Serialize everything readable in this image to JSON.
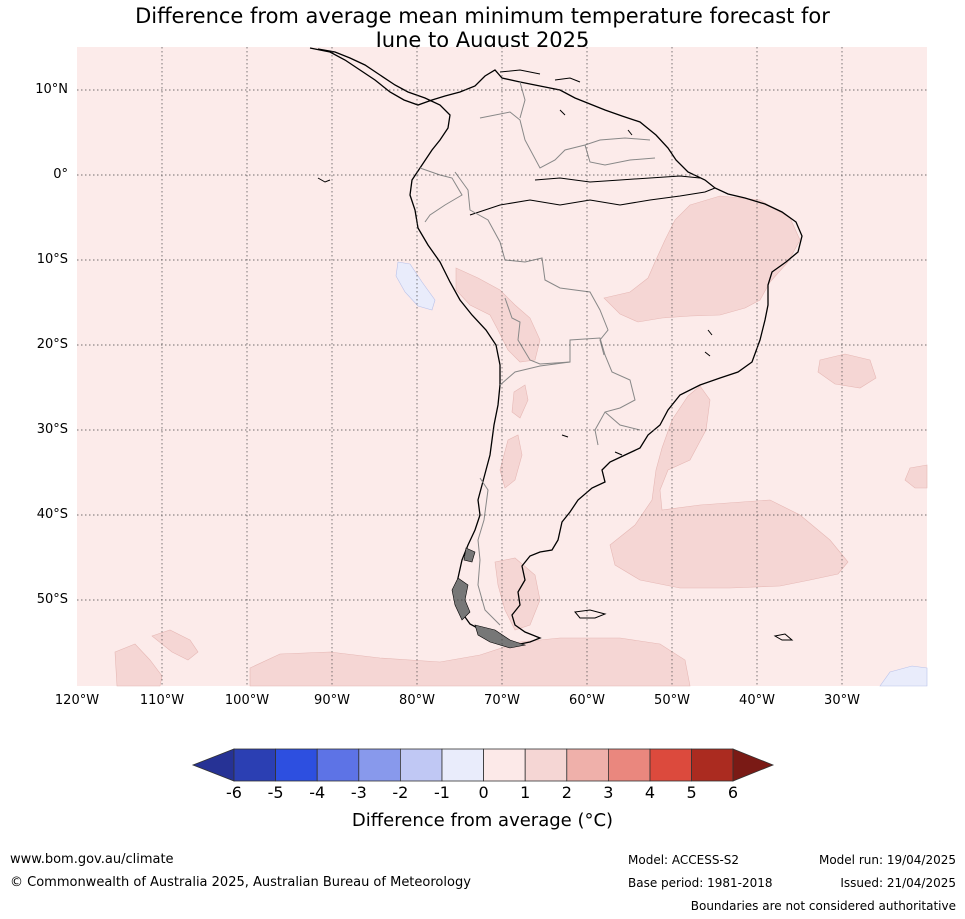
{
  "title_line1": "Difference from average mean minimum temperature forecast for",
  "title_line2": "June to August 2025",
  "lat_labels": [
    "10°N",
    "0°",
    "10°S",
    "20°S",
    "30°S",
    "40°S",
    "50°S"
  ],
  "lon_labels": [
    "120°W",
    "110°W",
    "100°W",
    "90°W",
    "80°W",
    "70°W",
    "60°W",
    "50°W",
    "40°W",
    "30°W"
  ],
  "colorbar": {
    "ticks": [
      "-6",
      "-5",
      "-4",
      "-3",
      "-2",
      "-1",
      "0",
      "1",
      "2",
      "3",
      "4",
      "5",
      "6"
    ],
    "colors": [
      "#263295",
      "#2b3fb3",
      "#2d4fe0",
      "#5d73e6",
      "#8899ec",
      "#c0c8f4",
      "#e9ecfb",
      "#fce9e8",
      "#f5d6d4",
      "#efb0aa",
      "#ea877e",
      "#dc4a3d",
      "#ab2b20",
      "#7a1a15"
    ],
    "label": "Difference from average (°C)"
  },
  "map_colors": {
    "base": "#fcebea",
    "warm_1_2": "#f5d6d4",
    "cool_-1_0": "#e9ecfb"
  },
  "footer": {
    "website": "www.bom.gov.au/climate",
    "copyright": "© Commonwealth of Australia 2025, Australian Bureau of Meteorology",
    "model": "Model: ACCESS-S2",
    "base_period": "Base period: 1981-2018",
    "model_run": "Model run: 19/04/2025",
    "issued": "Issued: 21/04/2025",
    "disclaimer": "Boundaries are not considered authoritative"
  }
}
